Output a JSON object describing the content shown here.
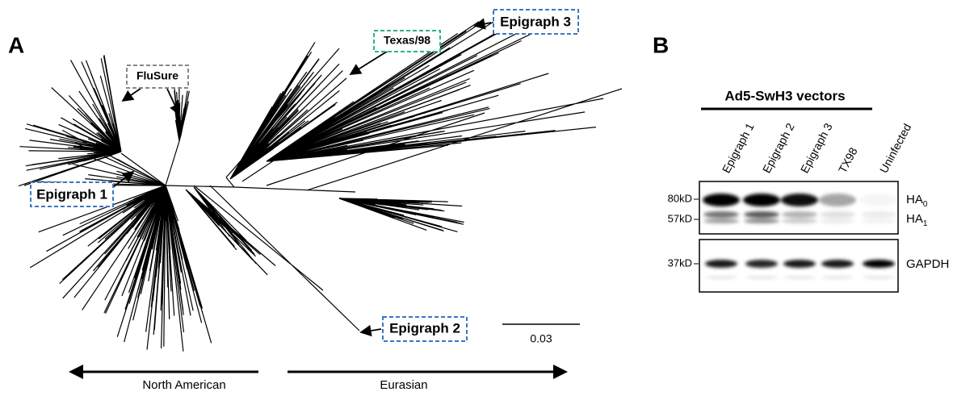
{
  "panel_a": {
    "label": "A",
    "tree_labels": {
      "flusure": "FluSure",
      "texas": "Texas/98",
      "epigraph3": "Epigraph 3",
      "epigraph1": "Epigraph 1",
      "epigraph2": "Epigraph 2"
    },
    "scale_bar": "0.03",
    "directions": {
      "left": "North American",
      "right": "Eurasian"
    }
  },
  "panel_b": {
    "label": "B",
    "group": "Ad5-SwH3 vectors",
    "lanes": [
      "Epigraph 1",
      "Epigraph 2",
      "Epigraph 3",
      "TX98",
      "Uninfected"
    ],
    "markers": [
      "80kD",
      "57kD",
      "37kD"
    ],
    "bands": [
      {
        "base": "HA",
        "sub": "0"
      },
      {
        "base": "HA",
        "sub": "1"
      },
      {
        "base": "GAPDH",
        "sub": ""
      }
    ]
  }
}
